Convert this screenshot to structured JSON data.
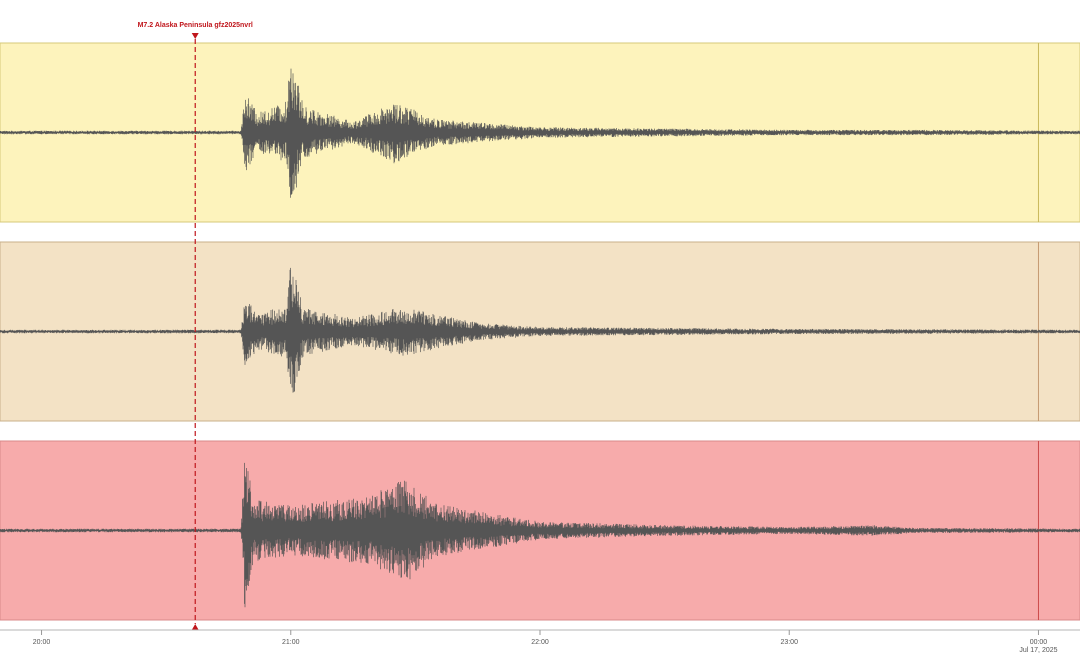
{
  "event": {
    "label": "M7.2 Alaska Peninsula gfz2025nvrl",
    "color": "#c0161c",
    "marker_time": "20:37"
  },
  "timeline": {
    "start": "19:50",
    "end": "00:10",
    "ticks": [
      {
        "time": "20:00",
        "label": "20:00",
        "sublabel": ""
      },
      {
        "time": "21:00",
        "label": "21:00",
        "sublabel": ""
      },
      {
        "time": "22:00",
        "label": "22:00",
        "sublabel": ""
      },
      {
        "time": "23:00",
        "label": "23:00",
        "sublabel": ""
      },
      {
        "time": "00:00",
        "label": "00:00",
        "sublabel": "Jul 17, 2025"
      }
    ]
  },
  "chart_data": {
    "type": "line",
    "title": "",
    "xlabel": "",
    "ylabel": "",
    "grid": false,
    "legend": "none",
    "x_axis": "time (UTC)",
    "event_time": "20:37",
    "trace_color": "#555555",
    "channels": [
      {
        "name": "",
        "panel_color": "#fdf3bc",
        "border_color": "#d6c97a",
        "marker_color": "#c9b85a",
        "envelope": [
          {
            "time": "19:50",
            "amplitude": 0.02
          },
          {
            "time": "20:48",
            "amplitude": 0.02
          },
          {
            "time": "20:49",
            "amplitude": 0.45
          },
          {
            "time": "20:52",
            "amplitude": 0.22
          },
          {
            "time": "20:59",
            "amplitude": 0.35
          },
          {
            "time": "21:00",
            "amplitude": 0.98
          },
          {
            "time": "21:03",
            "amplitude": 0.3
          },
          {
            "time": "21:15",
            "amplitude": 0.12
          },
          {
            "time": "21:25",
            "amplitude": 0.35
          },
          {
            "time": "21:35",
            "amplitude": 0.15
          },
          {
            "time": "22:00",
            "amplitude": 0.06
          },
          {
            "time": "23:00",
            "amplitude": 0.03
          },
          {
            "time": "23:30",
            "amplitude": 0.03
          },
          {
            "time": "00:10",
            "amplitude": 0.02
          }
        ]
      },
      {
        "name": "",
        "panel_color": "#f3e2c5",
        "border_color": "#c9b08a",
        "marker_color": "#c59a70",
        "envelope": [
          {
            "time": "19:50",
            "amplitude": 0.02
          },
          {
            "time": "20:48",
            "amplitude": 0.02
          },
          {
            "time": "20:49",
            "amplitude": 0.4
          },
          {
            "time": "20:52",
            "amplitude": 0.2
          },
          {
            "time": "20:59",
            "amplitude": 0.3
          },
          {
            "time": "21:00",
            "amplitude": 0.85
          },
          {
            "time": "21:03",
            "amplitude": 0.28
          },
          {
            "time": "21:15",
            "amplitude": 0.15
          },
          {
            "time": "21:27",
            "amplitude": 0.28
          },
          {
            "time": "21:45",
            "amplitude": 0.1
          },
          {
            "time": "22:00",
            "amplitude": 0.05
          },
          {
            "time": "23:00",
            "amplitude": 0.03
          },
          {
            "time": "00:10",
            "amplitude": 0.02
          }
        ]
      },
      {
        "name": "",
        "panel_color": "#f7abab",
        "border_color": "#d98a8a",
        "marker_color": "#cc4a4a",
        "envelope": [
          {
            "time": "19:50",
            "amplitude": 0.02
          },
          {
            "time": "20:48",
            "amplitude": 0.02
          },
          {
            "time": "20:49",
            "amplitude": 0.98
          },
          {
            "time": "20:51",
            "amplitude": 0.35
          },
          {
            "time": "21:00",
            "amplitude": 0.28
          },
          {
            "time": "21:20",
            "amplitude": 0.4
          },
          {
            "time": "21:27",
            "amplitude": 0.62
          },
          {
            "time": "21:35",
            "amplitude": 0.3
          },
          {
            "time": "22:00",
            "amplitude": 0.1
          },
          {
            "time": "22:30",
            "amplitude": 0.06
          },
          {
            "time": "23:00",
            "amplitude": 0.04
          },
          {
            "time": "23:20",
            "amplitude": 0.06
          },
          {
            "time": "23:30",
            "amplitude": 0.03
          },
          {
            "time": "00:10",
            "amplitude": 0.02
          }
        ]
      }
    ]
  }
}
